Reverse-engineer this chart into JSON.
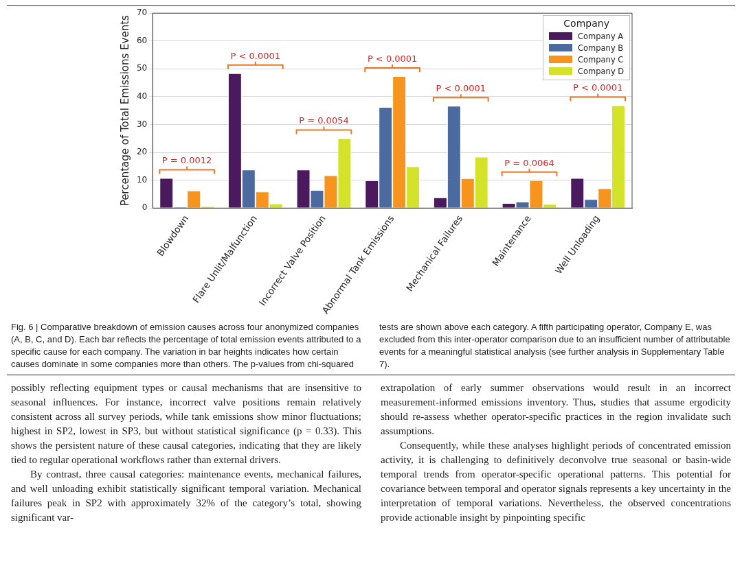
{
  "chart_data": {
    "type": "bar",
    "ylabel": "Percentage of Total Emissions Events",
    "legend_title": "Company",
    "legend": "top right",
    "grid": "y",
    "categories": [
      "Blowdown",
      "Flare Unlit/Malfunction",
      "Incorrect Valve Position",
      "Abnormal Tank Emissions",
      "Mechanical Failures",
      "Maintenance",
      "Well Unloading"
    ],
    "ylim": [
      0,
      70
    ],
    "yticks": [
      0,
      10,
      20,
      30,
      40,
      50,
      60,
      70
    ],
    "series": [
      {
        "name": "Company A",
        "color": "#4b1a5e",
        "values": [
          10.8,
          48.4,
          13.8,
          9.9,
          3.8,
          1.8,
          10.8
        ]
      },
      {
        "name": "Company B",
        "color": "#4a6aa0",
        "values": [
          0.4,
          13.8,
          6.5,
          36.3,
          36.7,
          2.3,
          3.2
        ]
      },
      {
        "name": "Company C",
        "color": "#f7941d",
        "values": [
          6.3,
          5.9,
          11.8,
          47.4,
          10.7,
          10.0,
          7.1
        ]
      },
      {
        "name": "Company D",
        "color": "#d4e22a",
        "values": [
          0.7,
          1.6,
          25.1,
          15.0,
          18.4,
          1.5,
          36.9
        ]
      }
    ],
    "annotations": [
      "P = 0.0012",
      "P < 0.0001",
      "P = 0.0054",
      "P < 0.0001",
      "P < 0.0001",
      "P = 0.0064",
      "P < 0.0001",
      "Fig. 6 | Comparative breakdown of emission causes across four anonymized companies (A, B, C, and D). Each bar reflects the percentage of total emission events attributed to a specific cause for each company. The variation in bar heights indicates how certain causes dominate in some companies more than others. The p-values from chi-squared tests are shown above each category. A fifth participating operator, Company E, was excluded from this inter-operator comparison due to an insufficient number of attributable events for a meaningful statistical analysis (see further analysis in Supplementary Table 7).",
      "possibly reflecting equipment types or causal mechanisms that are insensitive to seasonal influences. For instance, incorrect valve positions remain relatively consistent across all survey periods, while tank emissions show minor fluctuations; highest in SP2, lowest in SP3, but without statistical significance (p = 0.33). This shows the persistent nature of these causal categories, indicating that they are likely tied to regular operational workflows rather than external drivers.",
      "By contrast, three causal categories: maintenance events, mechanical failures, and well unloading exhibit statistically significant temporal variation. Mechanical failures peak in SP2 with approximately 32% of the category’s total, showing significant var-",
      "extrapolation of early summer observations would result in an incorrect measurement-informed emissions inventory. Thus, studies that assume ergodicity should re-assess whether operator-specific practices in the region invalidate such assumptions.",
      "Consequently, while these analyses highlight periods of concentrated emission activity, it is challenging to definitively deconvolve true seasonal or basin-wide temporal trends from operator-specific operational patterns. This potential for covariance between temporal and operator signals represents a key uncertainty in the interpretation of temporal variations. Nevertheless, the observed concentrations provide actionable insight by pinpointing specific"
    ]
  }
}
